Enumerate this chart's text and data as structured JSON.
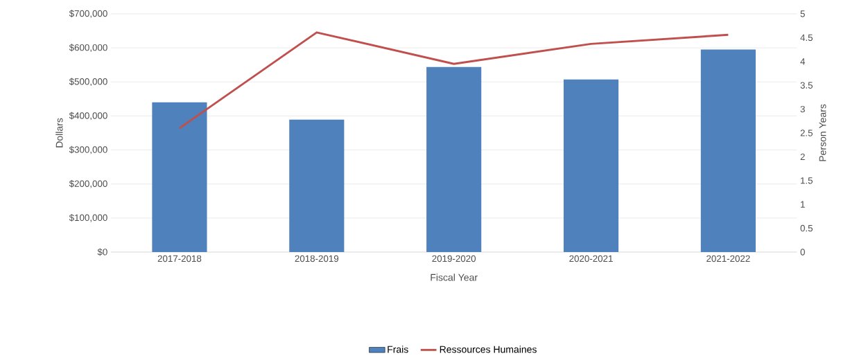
{
  "chart_data": {
    "type": "bar",
    "xlabel": "Fiscal Year",
    "ylabel": "Dollars",
    "y2label": "Person Years",
    "categories": [
      "2017-2018",
      "2018-2019",
      "2019-2020",
      "2020-2021",
      "2021-2022"
    ],
    "series": [
      {
        "name": "Frais",
        "color": "#4f81bd",
        "values": [
          440000,
          389000,
          544000,
          507000,
          595000
        ]
      },
      {
        "name": "Ressources Humaines",
        "type": "line",
        "axis": "y2",
        "color": "#c0504d",
        "values": [
          2.6,
          4.61,
          3.95,
          4.37,
          4.56
        ]
      }
    ],
    "ylim": [
      0,
      700000
    ],
    "yticks": [
      {
        "value": 0,
        "label": "$0"
      },
      {
        "value": 100000,
        "label": "$100,000"
      },
      {
        "value": 200000,
        "label": "$200,000"
      },
      {
        "value": 300000,
        "label": "$300,000"
      },
      {
        "value": 400000,
        "label": "$400,000"
      },
      {
        "value": 500000,
        "label": "$500,000"
      },
      {
        "value": 600000,
        "label": "$600,000"
      },
      {
        "value": 700000,
        "label": "$700,000"
      }
    ],
    "y2lim": [
      0,
      5
    ],
    "y2ticks": [
      0,
      0.5,
      1,
      1.5,
      2,
      2.5,
      3,
      3.5,
      4,
      4.5,
      5
    ],
    "grid": "y",
    "legend": "bottom"
  }
}
